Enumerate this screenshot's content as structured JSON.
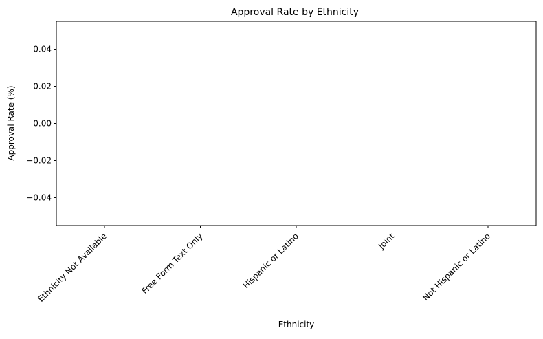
{
  "chart_data": {
    "type": "bar",
    "title": "Approval Rate by Ethnicity",
    "xlabel": "Ethnicity",
    "ylabel": "Approval Rate (%)",
    "categories": [
      "Ethnicity Not Available",
      "Free Form Text Only",
      "Hispanic or Latino",
      "Joint",
      "Not Hispanic or Latino"
    ],
    "values": [
      0,
      0,
      0,
      0,
      0
    ],
    "ylim": [
      -0.055,
      0.055
    ],
    "yticks": [
      0.04,
      0.02,
      0.0,
      -0.02,
      -0.04
    ],
    "ytick_labels": [
      "0.04",
      "0.02",
      "0.00",
      "−0.02",
      "−0.04"
    ],
    "grid": false,
    "legend": "none"
  }
}
